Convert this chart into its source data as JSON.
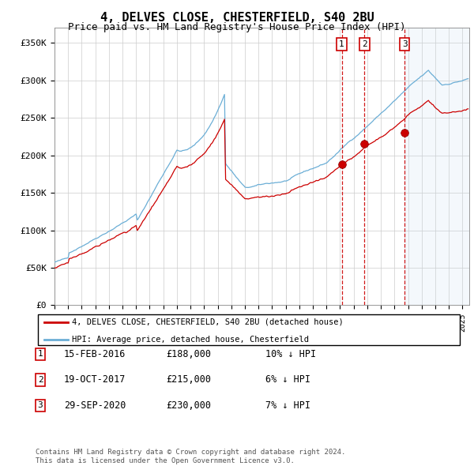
{
  "title": "4, DELVES CLOSE, CHESTERFIELD, S40 2BU",
  "subtitle": "Price paid vs. HM Land Registry's House Price Index (HPI)",
  "title_fontsize": 11,
  "subtitle_fontsize": 9,
  "ylabel_ticks": [
    "£0",
    "£50K",
    "£100K",
    "£150K",
    "£200K",
    "£250K",
    "£300K",
    "£350K"
  ],
  "ytick_values": [
    0,
    50000,
    100000,
    150000,
    200000,
    250000,
    300000,
    350000
  ],
  "ylim": [
    0,
    370000
  ],
  "xlim_start": 1995.0,
  "xlim_end": 2025.5,
  "hpi_color": "#6baed6",
  "price_color": "#cc0000",
  "marker_box_color": "#cc0000",
  "vline_color": "#cc0000",
  "shade_color": "#ddeeff",
  "legend_label_red": "4, DELVES CLOSE, CHESTERFIELD, S40 2BU (detached house)",
  "legend_label_blue": "HPI: Average price, detached house, Chesterfield",
  "transactions": [
    {
      "id": 1,
      "date": "15-FEB-2016",
      "year": 2016.12,
      "price": 188000,
      "pct": "10%",
      "dir": "↓"
    },
    {
      "id": 2,
      "date": "19-OCT-2017",
      "year": 2017.8,
      "price": 215000,
      "pct": "6%",
      "dir": "↓"
    },
    {
      "id": 3,
      "date": "29-SEP-2020",
      "year": 2020.75,
      "price": 230000,
      "pct": "7%",
      "dir": "↓"
    }
  ],
  "footer_line1": "Contains HM Land Registry data © Crown copyright and database right 2024.",
  "footer_line2": "This data is licensed under the Open Government Licence v3.0."
}
